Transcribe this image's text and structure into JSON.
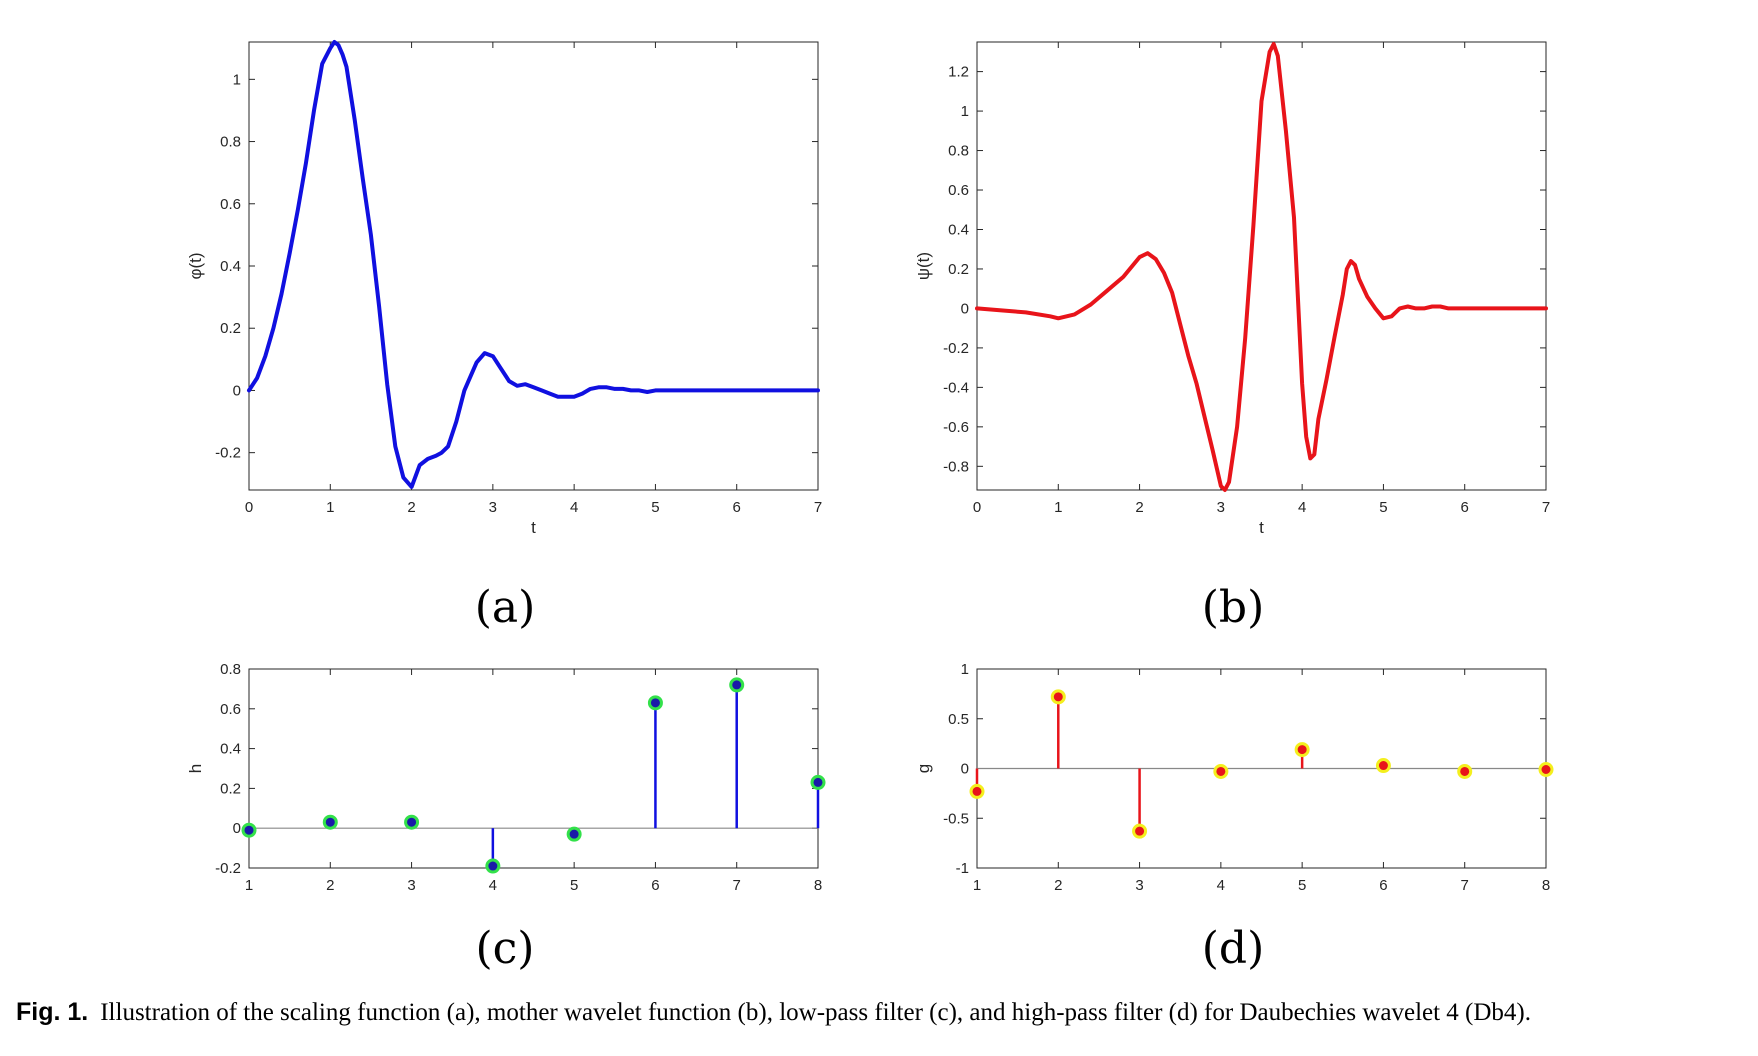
{
  "figure": {
    "caption_label": "Fig. 1.",
    "caption_text": "Illustration of the scaling function (a), mother wavelet function (b), low-pass filter (c), and high-pass filter (d) for Daubechies wavelet 4 (Db4).",
    "panel_labels": [
      "(a)",
      "(b)",
      "(c)",
      "(d)"
    ]
  },
  "chart_data": [
    {
      "id": "a",
      "type": "line",
      "xlabel": "t",
      "ylabel": "φ(t)",
      "xlim": [
        0,
        7
      ],
      "ylim": [
        -0.32,
        1.12
      ],
      "xticks": [
        0,
        1,
        2,
        3,
        4,
        5,
        6,
        7
      ],
      "yticks": [
        -0.2,
        0,
        0.2,
        0.4,
        0.6,
        0.8,
        1
      ],
      "color": "#1010e0",
      "x": [
        0,
        0.1,
        0.2,
        0.3,
        0.4,
        0.5,
        0.6,
        0.7,
        0.8,
        0.9,
        1.0,
        1.05,
        1.1,
        1.15,
        1.2,
        1.3,
        1.4,
        1.5,
        1.6,
        1.7,
        1.8,
        1.9,
        2.0,
        2.1,
        2.2,
        2.3,
        2.37,
        2.45,
        2.55,
        2.65,
        2.75,
        2.8,
        2.9,
        3.0,
        3.1,
        3.2,
        3.3,
        3.4,
        3.5,
        3.6,
        3.7,
        3.8,
        3.9,
        4.0,
        4.1,
        4.2,
        4.3,
        4.4,
        4.5,
        4.6,
        4.7,
        4.8,
        4.9,
        5.0,
        5.1,
        5.2,
        5.3,
        5.5,
        6.0,
        7.0
      ],
      "y": [
        0.0,
        0.04,
        0.11,
        0.2,
        0.31,
        0.44,
        0.58,
        0.73,
        0.9,
        1.05,
        1.1,
        1.12,
        1.11,
        1.08,
        1.04,
        0.87,
        0.68,
        0.5,
        0.27,
        0.02,
        -0.18,
        -0.28,
        -0.31,
        -0.24,
        -0.22,
        -0.21,
        -0.2,
        -0.18,
        -0.1,
        0.0,
        0.06,
        0.09,
        0.12,
        0.11,
        0.07,
        0.03,
        0.015,
        0.02,
        0.01,
        0.0,
        -0.01,
        -0.02,
        -0.02,
        -0.02,
        -0.01,
        0.005,
        0.01,
        0.01,
        0.005,
        0.005,
        0.0,
        0.0,
        -0.005,
        0.0,
        0.0,
        0.0,
        0.0,
        0.0,
        0.0,
        0.0
      ]
    },
    {
      "id": "b",
      "type": "line",
      "xlabel": "t",
      "ylabel": "ψ(t)",
      "xlim": [
        0,
        7
      ],
      "ylim": [
        -0.92,
        1.35
      ],
      "xticks": [
        0,
        1,
        2,
        3,
        4,
        5,
        6,
        7
      ],
      "yticks": [
        -0.8,
        -0.6,
        -0.4,
        -0.2,
        0,
        0.2,
        0.4,
        0.6,
        0.8,
        1,
        1.2
      ],
      "color": "#e8141a",
      "x": [
        0,
        0.3,
        0.6,
        0.9,
        1.0,
        1.2,
        1.4,
        1.6,
        1.8,
        2.0,
        2.1,
        2.2,
        2.3,
        2.4,
        2.5,
        2.6,
        2.7,
        2.8,
        2.9,
        3.0,
        3.05,
        3.1,
        3.2,
        3.3,
        3.4,
        3.5,
        3.6,
        3.65,
        3.7,
        3.8,
        3.9,
        4.0,
        4.05,
        4.1,
        4.15,
        4.2,
        4.3,
        4.4,
        4.5,
        4.55,
        4.6,
        4.65,
        4.7,
        4.8,
        4.9,
        5.0,
        5.1,
        5.2,
        5.3,
        5.4,
        5.5,
        5.6,
        5.7,
        5.8,
        6.0,
        6.5,
        7.0
      ],
      "y": [
        0.0,
        -0.01,
        -0.02,
        -0.04,
        -0.05,
        -0.03,
        0.02,
        0.09,
        0.16,
        0.26,
        0.28,
        0.25,
        0.18,
        0.08,
        -0.08,
        -0.24,
        -0.38,
        -0.55,
        -0.72,
        -0.9,
        -0.92,
        -0.88,
        -0.6,
        -0.15,
        0.42,
        1.05,
        1.3,
        1.34,
        1.28,
        0.9,
        0.46,
        -0.38,
        -0.65,
        -0.76,
        -0.74,
        -0.56,
        -0.36,
        -0.14,
        0.07,
        0.2,
        0.24,
        0.22,
        0.15,
        0.06,
        0.0,
        -0.05,
        -0.04,
        0.0,
        0.01,
        0.0,
        0.0,
        0.01,
        0.01,
        0.0,
        0.0,
        0.0,
        0.0
      ]
    },
    {
      "id": "c",
      "type": "stem",
      "xlabel": "",
      "ylabel": "h",
      "xlim": [
        1,
        8
      ],
      "ylim": [
        -0.2,
        0.8
      ],
      "xticks": [
        1,
        2,
        3,
        4,
        5,
        6,
        7,
        8
      ],
      "yticks": [
        -0.2,
        0,
        0.2,
        0.4,
        0.6,
        0.8
      ],
      "color": "#1010e0",
      "marker_face": "#1a1aa8",
      "marker_edge": "#33e14a",
      "x": [
        1,
        2,
        3,
        4,
        5,
        6,
        7,
        8
      ],
      "y": [
        -0.01,
        0.03,
        0.03,
        -0.19,
        -0.03,
        0.63,
        0.72,
        0.23
      ]
    },
    {
      "id": "d",
      "type": "stem",
      "xlabel": "",
      "ylabel": "g",
      "xlim": [
        1,
        8
      ],
      "ylim": [
        -1,
        1
      ],
      "xticks": [
        1,
        2,
        3,
        4,
        5,
        6,
        7,
        8
      ],
      "yticks": [
        -1,
        -0.5,
        0,
        0.5,
        1
      ],
      "color": "#e8141a",
      "marker_face": "#e8141a",
      "marker_edge": "#f4ef1e",
      "x": [
        1,
        2,
        3,
        4,
        5,
        6,
        7,
        8
      ],
      "y": [
        -0.23,
        0.72,
        -0.63,
        -0.03,
        0.19,
        0.03,
        -0.03,
        -0.01
      ]
    }
  ]
}
